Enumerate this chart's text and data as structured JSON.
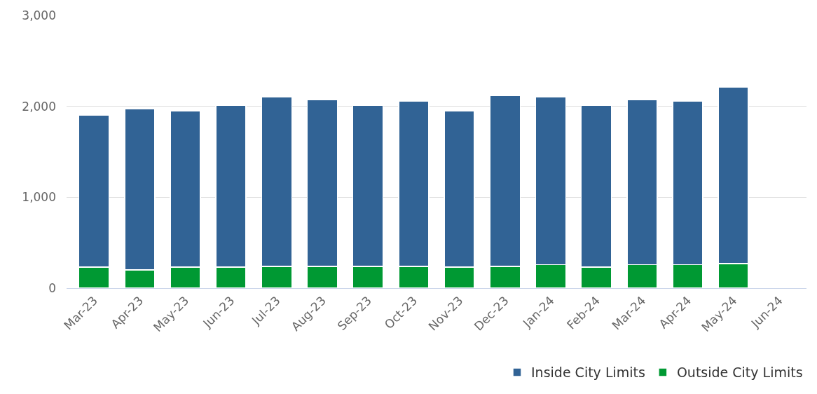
{
  "chart_data": {
    "type": "bar",
    "stacked": true,
    "categories": [
      "Mar-23",
      "Apr-23",
      "May-23",
      "Jun-23",
      "Jul-23",
      "Aug-23",
      "Sep-23",
      "Oct-23",
      "Nov-23",
      "Dec-23",
      "Jan-24",
      "Feb-24",
      "Mar-24",
      "Apr-24",
      "May-24",
      "Jun-24"
    ],
    "series": [
      {
        "name": "Outside City Limits",
        "color": "#009933",
        "values": [
          230,
          200,
          230,
          230,
          240,
          240,
          240,
          240,
          230,
          240,
          260,
          230,
          260,
          260,
          270,
          null
        ]
      },
      {
        "name": "Inside City Limits",
        "color": "#316395",
        "values": [
          1670,
          1770,
          1720,
          1780,
          1860,
          1830,
          1770,
          1820,
          1720,
          1880,
          1840,
          1780,
          1810,
          1800,
          1940,
          null
        ]
      }
    ],
    "ylim": [
      0,
      3000
    ],
    "yticks": [
      0,
      {
        "value": 1000,
        "label": "1,000"
      },
      {
        "value": 2000,
        "label": "2,000"
      },
      {
        "value": 3000,
        "label": "3,000"
      }
    ],
    "grid": "y",
    "legend": "bottom right"
  }
}
